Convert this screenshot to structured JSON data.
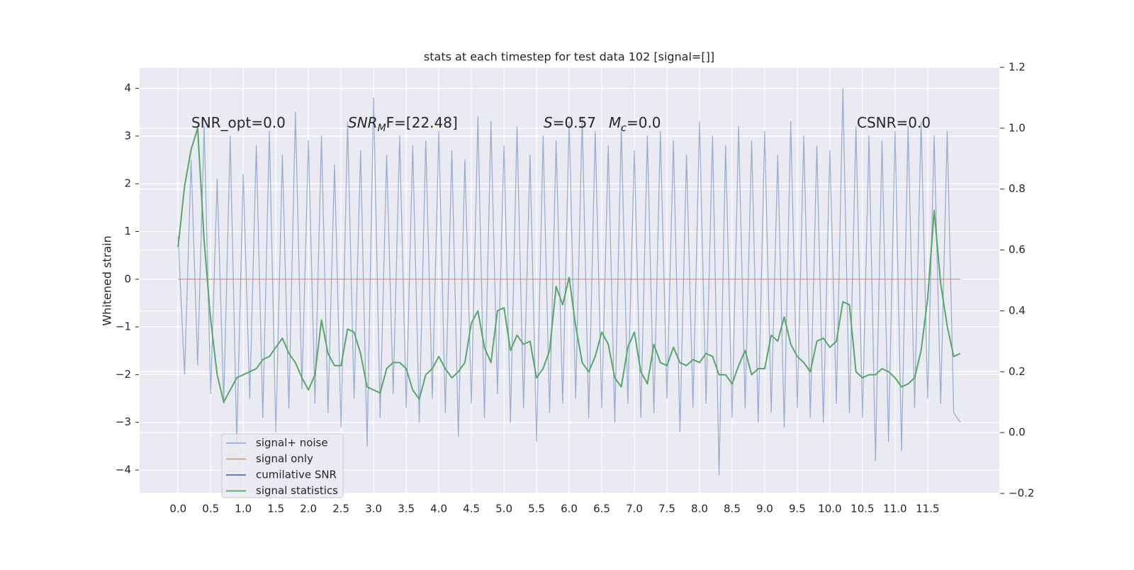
{
  "chart_data": {
    "type": "line",
    "title": "stats at each timestep for test data 102 [signal=[]]",
    "ylabel": "Whitened strain",
    "annotations": [
      {
        "text": "SNR_opt=0.0"
      },
      {
        "main": "SNR",
        "sub": "M",
        "tail": "F=[22.48]"
      },
      {
        "main": "S",
        "tail": "=0.57"
      },
      {
        "main": "M",
        "sub": "c",
        "tail": "=0.0"
      },
      {
        "text": "CSNR=0.0"
      }
    ],
    "x": [
      0,
      0.1,
      0.2,
      0.3,
      0.4,
      0.5,
      0.6,
      0.7,
      0.8,
      0.9,
      1,
      1.1,
      1.2,
      1.3,
      1.4,
      1.5,
      1.6,
      1.7,
      1.8,
      1.9,
      2,
      2.1,
      2.2,
      2.3,
      2.4,
      2.5,
      2.6,
      2.7,
      2.8,
      2.9,
      3,
      3.1,
      3.2,
      3.3,
      3.4,
      3.5,
      3.6,
      3.7,
      3.8,
      3.9,
      4,
      4.1,
      4.2,
      4.3,
      4.4,
      4.5,
      4.6,
      4.7,
      4.8,
      4.9,
      5,
      5.1,
      5.2,
      5.3,
      5.4,
      5.5,
      5.6,
      5.7,
      5.8,
      5.9,
      6,
      6.1,
      6.2,
      6.3,
      6.4,
      6.5,
      6.6,
      6.7,
      6.8,
      6.9,
      7,
      7.1,
      7.2,
      7.3,
      7.4,
      7.5,
      7.6,
      7.7,
      7.8,
      7.9,
      8,
      8.1,
      8.2,
      8.3,
      8.4,
      8.5,
      8.6,
      8.7,
      8.8,
      8.9,
      9,
      9.1,
      9.2,
      9.3,
      9.4,
      9.5,
      9.6,
      9.7,
      9.8,
      9.9,
      10,
      10.1,
      10.2,
      10.3,
      10.4,
      10.5,
      10.6,
      10.7,
      10.8,
      10.9,
      11,
      11.1,
      11.2,
      11.3,
      11.4,
      11.5,
      11.6,
      11.7,
      11.8,
      11.9,
      12
    ],
    "series": [
      {
        "name": "signal+ noise",
        "color": "#4c72b0",
        "opacity": 0.5,
        "values": [
          0.9,
          -2.0,
          2.5,
          -1.8,
          3.2,
          -2.4,
          2.1,
          -2.6,
          3.0,
          -3.4,
          2.2,
          -2.5,
          2.8,
          -2.9,
          3.1,
          -3.2,
          2.6,
          -2.7,
          3.5,
          -2.3,
          2.9,
          -2.6,
          3.0,
          -2.8,
          2.4,
          -3.1,
          3.3,
          -2.5,
          2.7,
          -3.5,
          3.8,
          -2.9,
          2.6,
          -2.4,
          3.0,
          -2.7,
          2.8,
          -3.0,
          2.9,
          -2.5,
          3.1,
          -2.8,
          2.7,
          -3.3,
          2.5,
          -2.6,
          3.4,
          -2.9,
          3.3,
          -2.4,
          2.8,
          -3.0,
          3.2,
          -2.7,
          2.6,
          -3.4,
          3.0,
          -2.8,
          2.9,
          -2.6,
          3.3,
          -2.5,
          3.4,
          -2.9,
          3.1,
          -2.7,
          2.8,
          -3.0,
          3.2,
          -2.6,
          2.7,
          -2.9,
          3.0,
          -2.8,
          3.1,
          -2.5,
          2.9,
          -3.2,
          2.6,
          -2.7,
          3.3,
          -2.6,
          3.0,
          -4.1,
          2.8,
          -2.9,
          3.2,
          -2.7,
          2.9,
          -3.0,
          3.1,
          -2.8,
          2.6,
          -3.1,
          3.3,
          -2.7,
          3.0,
          -2.9,
          2.8,
          -3.0,
          2.7,
          -2.6,
          4.0,
          -2.8,
          3.2,
          -2.9,
          3.0,
          -3.8,
          2.9,
          -3.4,
          3.1,
          -3.6,
          3.2,
          -2.7,
          3.3,
          -2.5,
          3.0,
          -2.6,
          3.1,
          -2.8,
          -3.0
        ]
      },
      {
        "name": "signal only",
        "color": "#dd8452",
        "opacity": 0.8,
        "values": [
          0,
          0,
          0,
          0,
          0,
          0,
          0,
          0,
          0,
          0,
          0,
          0,
          0,
          0,
          0,
          0,
          0,
          0,
          0,
          0,
          0,
          0,
          0,
          0,
          0,
          0,
          0,
          0,
          0,
          0,
          0,
          0,
          0,
          0,
          0,
          0,
          0,
          0,
          0,
          0,
          0,
          0,
          0,
          0,
          0,
          0,
          0,
          0,
          0,
          0,
          0,
          0,
          0,
          0,
          0,
          0,
          0,
          0,
          0,
          0,
          0,
          0,
          0,
          0,
          0,
          0,
          0,
          0,
          0,
          0,
          0,
          0,
          0,
          0,
          0,
          0,
          0,
          0,
          0,
          0,
          0,
          0,
          0,
          0,
          0,
          0,
          0,
          0,
          0,
          0,
          0,
          0,
          0,
          0,
          0,
          0,
          0,
          0,
          0,
          0,
          0,
          0,
          0,
          0,
          0,
          0,
          0,
          0,
          0,
          0,
          0,
          0,
          0,
          0,
          0,
          0,
          0,
          0,
          0,
          0,
          0
        ]
      },
      {
        "name": "cumilative SNR",
        "color": "#4c72b0",
        "opacity": 1
      },
      {
        "name": "signal statistics",
        "color": "#55a868",
        "opacity": 1,
        "axis": "y2",
        "values": [
          0.61,
          0.81,
          0.93,
          1.0,
          0.63,
          0.37,
          0.19,
          0.1,
          0.14,
          0.18,
          0.19,
          0.2,
          0.21,
          0.24,
          0.25,
          0.28,
          0.31,
          0.26,
          0.23,
          0.18,
          0.14,
          0.19,
          0.37,
          0.26,
          0.22,
          0.22,
          0.34,
          0.33,
          0.26,
          0.15,
          0.14,
          0.13,
          0.21,
          0.23,
          0.23,
          0.21,
          0.14,
          0.11,
          0.19,
          0.21,
          0.25,
          0.21,
          0.18,
          0.2,
          0.23,
          0.36,
          0.4,
          0.28,
          0.23,
          0.4,
          0.41,
          0.27,
          0.32,
          0.29,
          0.3,
          0.18,
          0.21,
          0.27,
          0.48,
          0.42,
          0.51,
          0.35,
          0.23,
          0.2,
          0.25,
          0.33,
          0.29,
          0.18,
          0.15,
          0.28,
          0.33,
          0.2,
          0.16,
          0.29,
          0.23,
          0.22,
          0.28,
          0.23,
          0.22,
          0.24,
          0.23,
          0.26,
          0.25,
          0.19,
          0.19,
          0.16,
          0.22,
          0.27,
          0.19,
          0.21,
          0.21,
          0.32,
          0.3,
          0.38,
          0.29,
          0.25,
          0.23,
          0.2,
          0.3,
          0.31,
          0.28,
          0.3,
          0.43,
          0.42,
          0.2,
          0.18,
          0.19,
          0.19,
          0.21,
          0.2,
          0.18,
          0.15,
          0.16,
          0.18,
          0.27,
          0.44,
          0.73,
          0.49,
          0.35,
          0.25,
          0.26
        ]
      }
    ],
    "xlim": [
      -0.59,
      12.6
    ],
    "ylim": [
      -4.49,
      4.44
    ],
    "y2lim": [
      -0.2,
      1.2
    ],
    "xticks": [
      {
        "value": 0,
        "label": "0.0"
      },
      {
        "value": 0.5,
        "label": "0.5"
      },
      {
        "value": 1,
        "label": "1.0"
      },
      {
        "value": 1.5,
        "label": "1.5"
      },
      {
        "value": 2,
        "label": "2.0"
      },
      {
        "value": 2.5,
        "label": "2.5"
      },
      {
        "value": 3,
        "label": "3.0"
      },
      {
        "value": 3.5,
        "label": "3.5"
      },
      {
        "value": 4,
        "label": "4.0"
      },
      {
        "value": 4.5,
        "label": "4.5"
      },
      {
        "value": 5,
        "label": "5.0"
      },
      {
        "value": 5.5,
        "label": "5.5"
      },
      {
        "value": 6,
        "label": "6.0"
      },
      {
        "value": 6.5,
        "label": "6.5"
      },
      {
        "value": 7,
        "label": "7.0"
      },
      {
        "value": 7.5,
        "label": "7.5"
      },
      {
        "value": 8,
        "label": "8.0"
      },
      {
        "value": 8.5,
        "label": "8.5"
      },
      {
        "value": 9,
        "label": "9.0"
      },
      {
        "value": 9.5,
        "label": "9.5"
      },
      {
        "value": 10,
        "label": "10.0"
      },
      {
        "value": 10.5,
        "label": "10.5"
      },
      {
        "value": 11,
        "label": "11.0"
      },
      {
        "value": 11.5,
        "label": "11.5"
      }
    ],
    "yticks": [
      {
        "value": -4,
        "label": "−4"
      },
      {
        "value": -3,
        "label": "−3"
      },
      {
        "value": -2,
        "label": "−2"
      },
      {
        "value": -1,
        "label": "−1"
      },
      0,
      1,
      2,
      3,
      4
    ],
    "y2ticks": [
      {
        "value": -0.2,
        "label": "−0.2"
      },
      {
        "value": 0,
        "label": "0.0"
      },
      {
        "value": 0.2,
        "label": "0.2"
      },
      {
        "value": 0.4,
        "label": "0.4"
      },
      {
        "value": 0.6,
        "label": "0.6"
      },
      {
        "value": 0.8,
        "label": "0.8"
      },
      {
        "value": 1,
        "label": "1.0"
      },
      {
        "value": 1.2,
        "label": "1.2"
      }
    ],
    "grid": true,
    "background": "#eaeaf2",
    "legend": "lower left"
  }
}
